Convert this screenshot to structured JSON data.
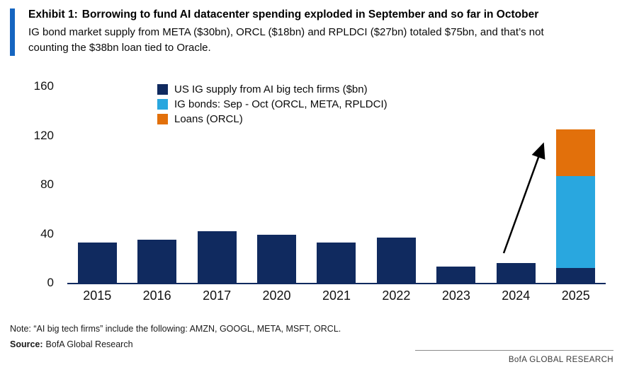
{
  "header": {
    "exhibit_label": "Exhibit 1:",
    "title": "Borrowing to fund AI datacenter spending exploded in September and so far in October",
    "subtitle": "IG bond market supply from META ($30bn), ORCL ($18bn) and RPLDCI ($27bn) totaled $75bn, and that’s not counting the $38bn loan tied to Oracle."
  },
  "chart_data": {
    "type": "bar",
    "stacked": true,
    "categories": [
      "2015",
      "2016",
      "2017",
      "2020",
      "2021",
      "2022",
      "2023",
      "2024",
      "2025"
    ],
    "series": [
      {
        "name": "US IG supply from AI big tech firms ($bn)",
        "color": "#102a5f",
        "values": [
          33,
          35,
          42,
          39,
          33,
          37,
          13,
          16,
          12
        ]
      },
      {
        "name": "IG bonds: Sep - Oct (ORCL, META, RPLDCI)",
        "color": "#29a7df",
        "values": [
          0,
          0,
          0,
          0,
          0,
          0,
          0,
          0,
          75
        ]
      },
      {
        "name": "Loans (ORCL)",
        "color": "#e2700b",
        "values": [
          0,
          0,
          0,
          0,
          0,
          0,
          0,
          0,
          38
        ]
      }
    ],
    "ylim": [
      0,
      160
    ],
    "yticks": [
      0,
      40,
      80,
      120,
      160
    ],
    "xlabel": "",
    "ylabel": "",
    "grid": false,
    "legend_position": "top-left-inside",
    "annotation": {
      "type": "arrow",
      "description": "Arrow pointing from above the 2024 bar up to the top of the 2025 stacked bar"
    }
  },
  "footer": {
    "note": "Note: “AI big tech firms” include the following: AMZN, GOOGL, META, MSFT, ORCL.",
    "source_label": "Source:",
    "source_text": "BofA Global Research",
    "brand": "BofA GLOBAL RESEARCH"
  },
  "colors": {
    "accent_bar": "#1565c0",
    "navy": "#102a5f",
    "light_blue": "#29a7df",
    "orange": "#e2700b",
    "axis_line": "#102a5f"
  }
}
